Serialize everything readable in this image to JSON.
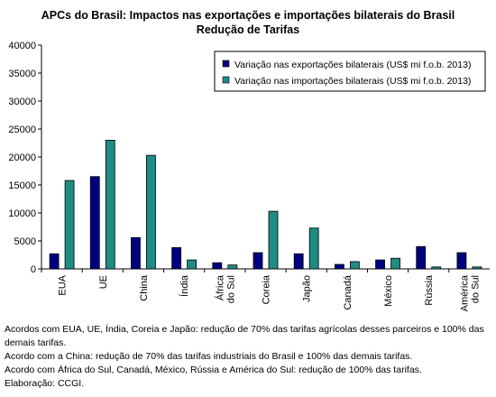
{
  "chart_data": {
    "type": "bar",
    "title_lines": [
      "APCs do Brasil: Impactos nas exportações e importações bilaterais do Brasil",
      "Redução de Tarifas"
    ],
    "xlabel": "",
    "ylabel": "",
    "ylim": [
      0,
      40000
    ],
    "yticks": [
      "0",
      "5000",
      "10000",
      "15000",
      "20000",
      "25000",
      "30000",
      "35000",
      "40000"
    ],
    "grid": false,
    "legend_position": "top-right",
    "categories": [
      {
        "label": [
          "EUA"
        ]
      },
      {
        "label": [
          "UE"
        ]
      },
      {
        "label": [
          "China"
        ]
      },
      {
        "label": [
          "Índia"
        ]
      },
      {
        "label": [
          "África",
          "do Sul"
        ]
      },
      {
        "label": [
          "Coreia"
        ]
      },
      {
        "label": [
          "Japão"
        ]
      },
      {
        "label": [
          "Canadá"
        ]
      },
      {
        "label": [
          "México"
        ]
      },
      {
        "label": [
          "Rússia"
        ]
      },
      {
        "label": [
          "América",
          "do Sul"
        ]
      }
    ],
    "series": [
      {
        "name": "Variação nas exportações bilaterais (US$ mi f.o.b. 2013)",
        "color": "#000080",
        "values": [
          2700,
          16500,
          5600,
          3800,
          1100,
          2900,
          2700,
          800,
          1600,
          4000,
          2900
        ]
      },
      {
        "name": "Variação nas importações bilaterais (US$ mi f.o.b. 2013)",
        "color": "#1E8C82",
        "values": [
          15800,
          23000,
          20300,
          1600,
          700,
          10300,
          7300,
          1300,
          1900,
          350,
          350
        ]
      }
    ]
  },
  "notes": [
    "Acordos com EUA, UE, Índia, Coreia e Japão: redução de 70% das tarifas agrícolas desses parceiros e 100% das demais tarifas.",
    "Acordo com a China: redução de 70% das tarifas industriais do Brasil e 100% das demais tarifas.",
    "Acordo com África do Sul, Canadá, México, Rússia e América do Sul: redução de 100% das tarifas.",
    "Elaboração: CCGI."
  ]
}
